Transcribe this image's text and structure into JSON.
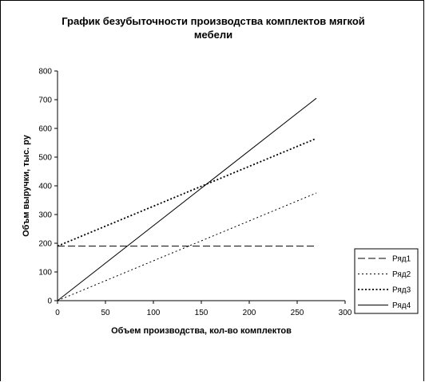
{
  "chart_data": {
    "type": "line",
    "title_lines": [
      "График безубыточности производства комплектов мягкой",
      "мебели"
    ],
    "xlabel": "Объем производства, кол-во комплектов",
    "ylabel": "Объм выручки, тыс. ру",
    "xlim": [
      0,
      300
    ],
    "ylim": [
      0,
      800
    ],
    "x_ticks": [
      0,
      50,
      100,
      150,
      200,
      250,
      300
    ],
    "y_ticks": [
      0,
      100,
      200,
      300,
      400,
      500,
      600,
      700,
      800
    ],
    "grid": false,
    "legend_position": "right",
    "series": [
      {
        "name": "Ряд1",
        "style": "dashed",
        "x": [
          0,
          270
        ],
        "y": [
          190,
          190
        ]
      },
      {
        "name": "Ряд2",
        "style": "dotted",
        "x": [
          0,
          270
        ],
        "y": [
          0,
          375
        ]
      },
      {
        "name": "Ряд3",
        "style": "bold-dotted",
        "x": [
          0,
          270
        ],
        "y": [
          190,
          565
        ]
      },
      {
        "name": "Ряд4",
        "style": "solid",
        "x": [
          0,
          270
        ],
        "y": [
          0,
          705
        ]
      }
    ]
  }
}
